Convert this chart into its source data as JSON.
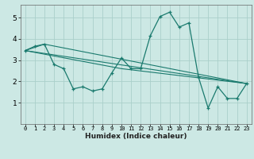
{
  "title": "",
  "xlabel": "Humidex (Indice chaleur)",
  "background_color": "#cce8e4",
  "grid_color": "#aacfca",
  "line_color": "#1a7a6e",
  "xlim": [
    -0.5,
    23.5
  ],
  "ylim": [
    0,
    5.6
  ],
  "yticks": [
    1,
    2,
    3,
    4,
    5
  ],
  "xticks": [
    0,
    1,
    2,
    3,
    4,
    5,
    6,
    7,
    8,
    9,
    10,
    11,
    12,
    13,
    14,
    15,
    16,
    17,
    18,
    19,
    20,
    21,
    22,
    23
  ],
  "series1_x": [
    0,
    1,
    2,
    3,
    4,
    5,
    6,
    7,
    8,
    9,
    10,
    11,
    12,
    13,
    14,
    15,
    16,
    17,
    18,
    19,
    20,
    21,
    22,
    23
  ],
  "series1_y": [
    3.45,
    3.65,
    3.75,
    2.8,
    2.6,
    1.65,
    1.75,
    1.55,
    1.65,
    2.4,
    3.1,
    2.6,
    2.6,
    4.15,
    5.05,
    5.25,
    4.55,
    4.75,
    2.2,
    0.75,
    1.75,
    1.2,
    1.2,
    1.9
  ],
  "series2_x": [
    0,
    23
  ],
  "series2_y": [
    3.45,
    1.9
  ],
  "series3_x": [
    0,
    10,
    23
  ],
  "series3_y": [
    3.45,
    2.6,
    1.9
  ],
  "series4_x": [
    0,
    2,
    23
  ],
  "series4_y": [
    3.45,
    3.75,
    1.9
  ]
}
